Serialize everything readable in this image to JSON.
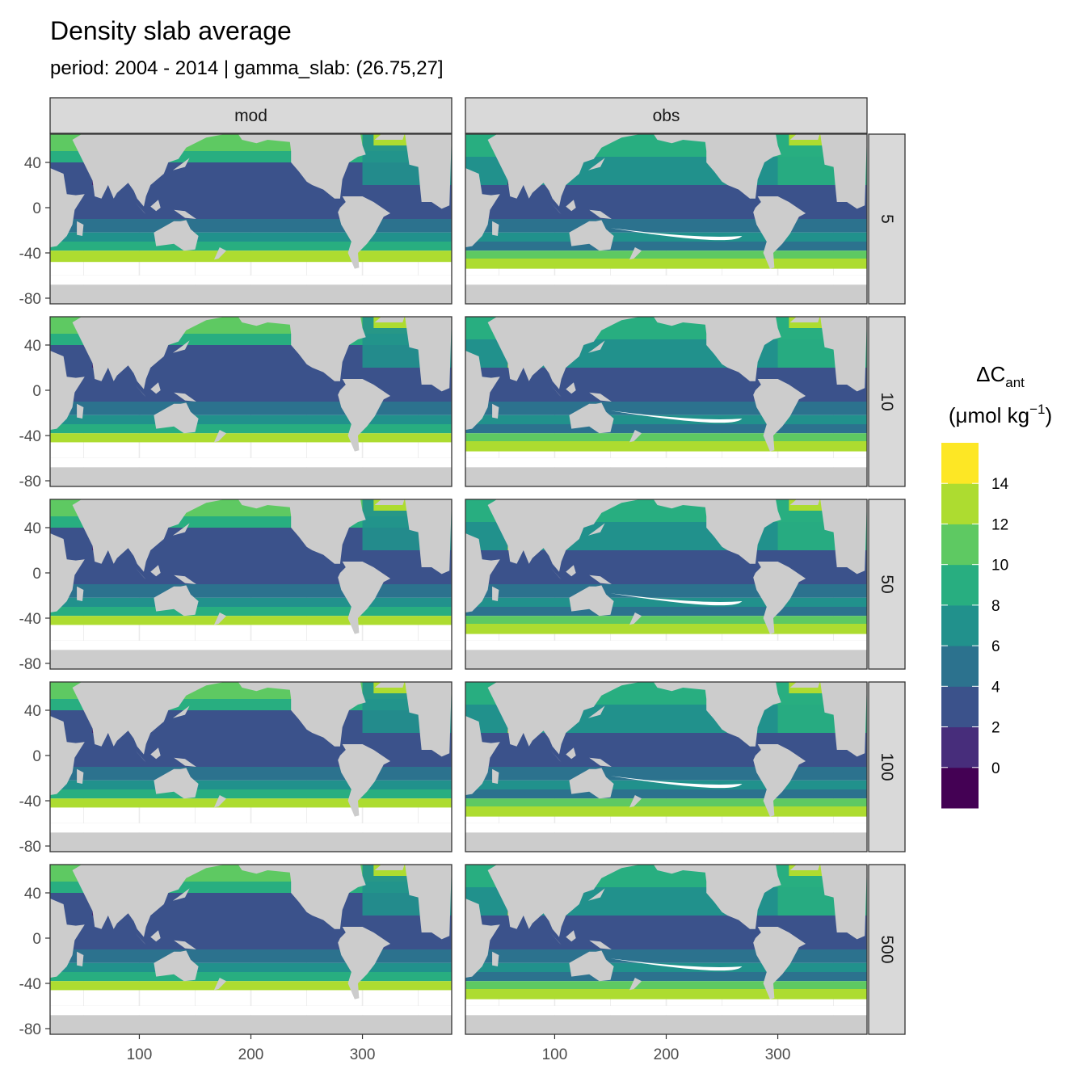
{
  "title": "Density slab average",
  "subtitle": "period: 2004 - 2014 | gamma_slab: (26.75,27]",
  "chart_data": {
    "type": "heatmap",
    "title": "Density slab average",
    "subtitle": "period: 2004 - 2014 | gamma_slab: (26.75,27]",
    "facet_columns": [
      "mod",
      "obs"
    ],
    "facet_rows": [
      "5",
      "10",
      "50",
      "100",
      "500"
    ],
    "x_ticks": [
      "100",
      "200",
      "300"
    ],
    "y_ticks": [
      "40",
      "0",
      "-40",
      "-80"
    ],
    "xlim": [
      20,
      380
    ],
    "ylim": [
      -85,
      65
    ],
    "grid": true,
    "legend": {
      "position": "right",
      "title_main": "ΔC",
      "title_sub": "ant",
      "unit_prefix": "(μmol kg",
      "unit_sup": "−1",
      "unit_suffix": ")",
      "labels": [
        "14",
        "12",
        "10",
        "8",
        "6",
        "4",
        "2",
        "0"
      ],
      "colors": [
        "#440154",
        "#472d7b",
        "#3b528b",
        "#2c728e",
        "#21918c",
        "#28ae80",
        "#5ec962",
        "#addc30",
        "#fde725"
      ]
    },
    "land_color": "#cccccc",
    "grid_color": "#ebebeb",
    "strip_color": "#d9d9d9"
  }
}
